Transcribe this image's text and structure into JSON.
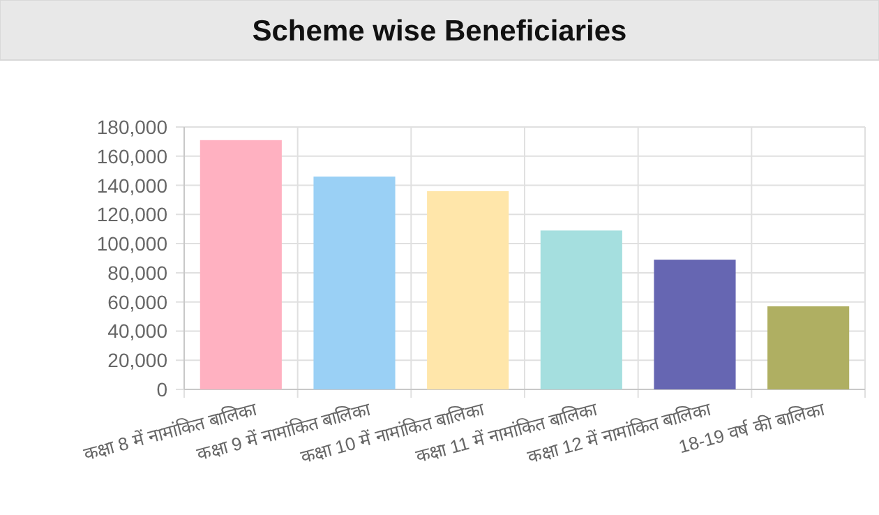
{
  "chart_data": {
    "type": "bar",
    "title": "Scheme wise Beneficiaries",
    "categories": [
      "कक्षा 8 में नामांकित बालिका",
      "कक्षा 9 में नामांकित बालिका",
      "कक्षा 10 में नामांकित बालिका",
      "कक्षा 11 में नामांकित बालिका",
      "कक्षा 12 में नामांकित बालिका",
      "18-19 वर्ष की बालिका"
    ],
    "values": [
      171000,
      146000,
      136000,
      109000,
      89000,
      57000
    ],
    "colors": [
      "#ffb1c1",
      "#9ad0f5",
      "#ffe6aa",
      "#a5dfdf",
      "#6666b2",
      "#afaf62"
    ],
    "ylim": [
      0,
      180000
    ],
    "yticks": [
      {
        "value": 0,
        "label": "0"
      },
      {
        "value": 20000,
        "label": "20,000"
      },
      {
        "value": 40000,
        "label": "40,000"
      },
      {
        "value": 60000,
        "label": "60,000"
      },
      {
        "value": 80000,
        "label": "80,000"
      },
      {
        "value": 100000,
        "label": "100,000"
      },
      {
        "value": 120000,
        "label": "120,000"
      },
      {
        "value": 140000,
        "label": "140,000"
      },
      {
        "value": 160000,
        "label": "160,000"
      },
      {
        "value": 180000,
        "label": "180,000"
      }
    ],
    "grid": true
  }
}
